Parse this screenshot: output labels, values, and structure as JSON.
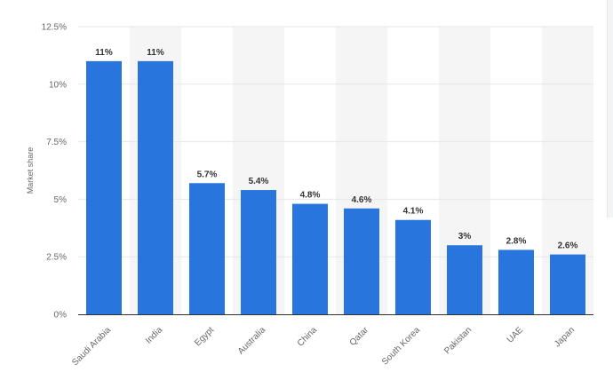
{
  "chart_data": {
    "type": "bar",
    "title": "",
    "xlabel": "",
    "ylabel": "Market share",
    "ylim": [
      0,
      12.5
    ],
    "y_ticks": [
      {
        "value": 0,
        "label": "0%"
      },
      {
        "value": 2.5,
        "label": "2.5%"
      },
      {
        "value": 5,
        "label": "5%"
      },
      {
        "value": 7.5,
        "label": "7.5%"
      },
      {
        "value": 10,
        "label": "10%"
      },
      {
        "value": 12.5,
        "label": "12.5%"
      }
    ],
    "categories": [
      "Saudi Arabia",
      "India",
      "Egypt",
      "Australia",
      "China",
      "Qatar",
      "South Korea",
      "Pakistan",
      "UAE",
      "Japan"
    ],
    "values": [
      11,
      11,
      5.7,
      5.4,
      4.8,
      4.6,
      4.1,
      3,
      2.8,
      2.6
    ],
    "data_labels": [
      "11%",
      "11%",
      "5.7%",
      "5.4%",
      "4.8%",
      "4.6%",
      "4.1%",
      "3%",
      "2.8%",
      "2.6%"
    ],
    "grid": true,
    "legend": "none",
    "colors": {
      "bar": "#2876dd",
      "band": "#f5f5f5",
      "grid": "#e6e6e6",
      "axis": "#333333"
    }
  }
}
